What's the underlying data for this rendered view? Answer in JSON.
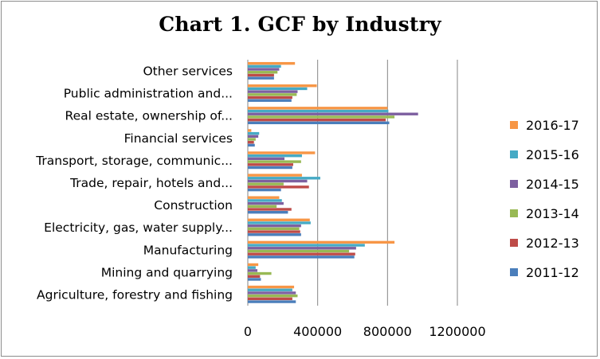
{
  "chart_data": {
    "type": "bar",
    "orientation": "horizontal",
    "title": "Chart 1. GCF by Industry",
    "xlabel": "",
    "ylabel": "",
    "xlim": [
      0,
      1200000
    ],
    "xticks": [
      "0",
      "400000",
      "800000",
      "1200000"
    ],
    "grid": "vertical major gridlines",
    "legend_position": "right",
    "categories": [
      "Agriculture, forestry and fishing",
      "Mining and quarrying",
      "Manufacturing",
      "Electricity, gas, water supply...",
      "Construction",
      "Trade, repair, hotels and...",
      "Transport, storage, communic...",
      "Financial services",
      "Real estate, ownership of...",
      "Public administration and...",
      "Other services"
    ],
    "series": [
      {
        "name": "2011-12",
        "color": "#4a7ebb",
        "values": [
          275000,
          75000,
          610000,
          305000,
          230000,
          190000,
          255000,
          40000,
          810000,
          250000,
          150000
        ]
      },
      {
        "name": "2012-13",
        "color": "#be4b48",
        "values": [
          255000,
          70000,
          615000,
          300000,
          250000,
          350000,
          260000,
          35000,
          790000,
          255000,
          150000
        ]
      },
      {
        "name": "2013-14",
        "color": "#98b954",
        "values": [
          285000,
          135000,
          580000,
          295000,
          165000,
          205000,
          305000,
          45000,
          840000,
          280000,
          170000
        ]
      },
      {
        "name": "2014-15",
        "color": "#7d60a0",
        "values": [
          275000,
          55000,
          620000,
          305000,
          205000,
          340000,
          210000,
          60000,
          975000,
          285000,
          180000
        ]
      },
      {
        "name": "2015-16",
        "color": "#46aac5",
        "values": [
          255000,
          45000,
          670000,
          360000,
          195000,
          415000,
          310000,
          65000,
          805000,
          340000,
          190000
        ]
      },
      {
        "name": "2016-17",
        "color": "#f79646",
        "values": [
          265000,
          60000,
          840000,
          355000,
          180000,
          310000,
          385000,
          20000,
          800000,
          395000,
          270000
        ]
      }
    ]
  }
}
